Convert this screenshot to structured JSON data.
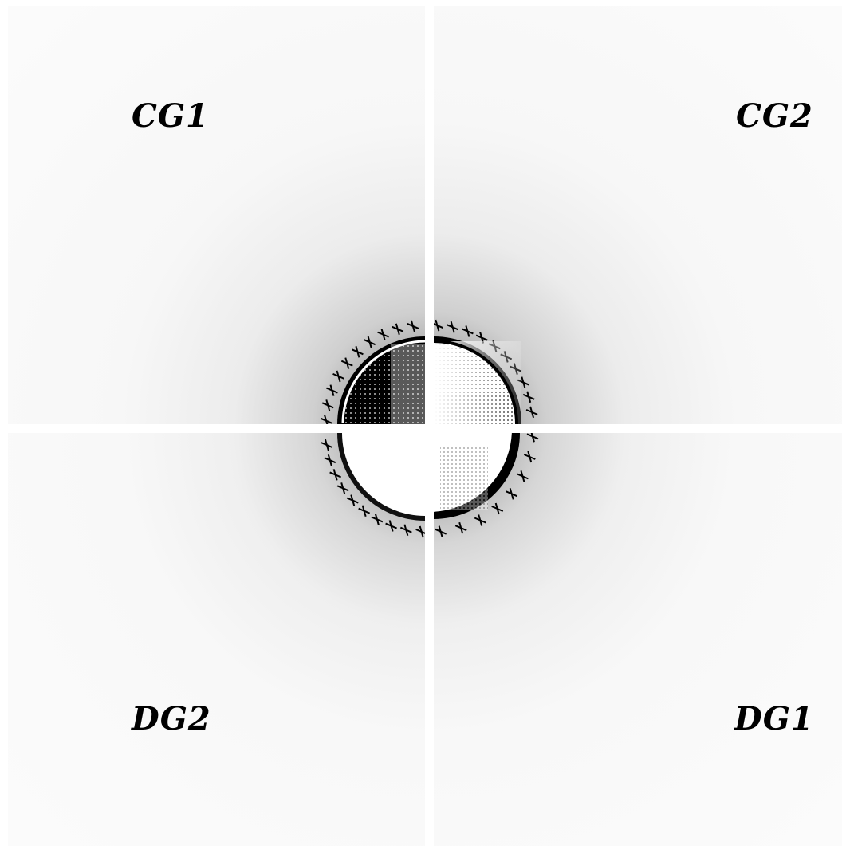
{
  "quadrants": {
    "top_left": {
      "label": "CG1"
    },
    "top_right": {
      "label": "CG2"
    },
    "bottom_left": {
      "label": "DG2"
    },
    "bottom_right": {
      "label": "DG1"
    }
  },
  "colors": {
    "background": "#ffffff",
    "disk_dark": "#000000",
    "disk_light": "#ffffff",
    "halo": "#585858"
  }
}
